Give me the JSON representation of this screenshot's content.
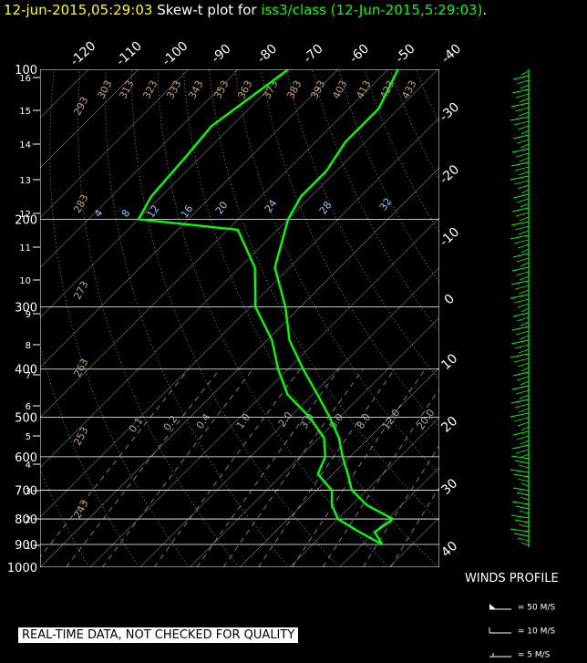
{
  "title": {
    "date": "12-jun-2015,05:29:03",
    "middle": "Skew-t plot for ",
    "source": "iss3/class (12-Jun-2015,5:29:03)",
    "end": "."
  },
  "notice": "REAL-TIME DATA, NOT CHECKED FOR QUALITY",
  "winds": {
    "title": "WINDS PROFILE",
    "legend": [
      "= 50 M/S",
      "= 10 M/S",
      "= 5 M/S"
    ]
  },
  "colors": {
    "profile": "#00ff00",
    "grid": "#ffffff",
    "dry_adiabat": "#c8a070",
    "mixing_ratio": "#88c8ff",
    "title_date": "#ffff00",
    "title_source": "#00ff00"
  },
  "chart_data": {
    "type": "skew-t",
    "pressure_levels_hPa": [
      100,
      200,
      300,
      400,
      500,
      600,
      700,
      800,
      900,
      1000
    ],
    "temperature_labels_top": [
      "-120",
      "-110",
      "-100",
      "-90",
      "-80",
      "-70",
      "-60",
      "-50",
      "-40"
    ],
    "temperature_labels_right": [
      "-30",
      "-20",
      "-10",
      "0",
      "10",
      "20",
      "30",
      "40"
    ],
    "height_km_labels": [
      "16",
      "15",
      "14",
      "13",
      "12",
      "11",
      "10",
      "9",
      "8",
      "7",
      "6",
      "5",
      "4",
      "3",
      "2",
      "1"
    ],
    "height_km_values": [
      16,
      15,
      14,
      13,
      12,
      11,
      10,
      9,
      8,
      7,
      6,
      5,
      4,
      3,
      2,
      1
    ],
    "dry_adiabat_labels": [
      "293",
      "303",
      "313",
      "323",
      "333",
      "343",
      "353",
      "363",
      "373",
      "383",
      "393",
      "403",
      "413",
      "423",
      "433",
      "283",
      "273",
      "263",
      "253",
      "243"
    ],
    "mixing_ratio_labels_upper": [
      "4",
      "8",
      "12",
      "16",
      "20",
      "24",
      "28",
      "32"
    ],
    "mixing_ratio_labels_lower": [
      "0.1",
      "0.2",
      "0.4",
      "1.0",
      "2.0",
      "3.0",
      "5.0",
      "8.0",
      "12.0",
      "20.0"
    ],
    "temperature_profile": [
      {
        "p": 900,
        "t": 24.0
      },
      {
        "p": 850,
        "t": 20.0
      },
      {
        "p": 800,
        "t": 21.0
      },
      {
        "p": 750,
        "t": 13.0
      },
      {
        "p": 700,
        "t": 7.0
      },
      {
        "p": 650,
        "t": 3.0
      },
      {
        "p": 600,
        "t": -1.5
      },
      {
        "p": 550,
        "t": -6.0
      },
      {
        "p": 500,
        "t": -12.0
      },
      {
        "p": 450,
        "t": -19.0
      },
      {
        "p": 400,
        "t": -27.0
      },
      {
        "p": 350,
        "t": -35.5
      },
      {
        "p": 300,
        "t": -43.0
      },
      {
        "p": 250,
        "t": -53.0
      },
      {
        "p": 200,
        "t": -60.0
      },
      {
        "p": 180,
        "t": -62.0
      },
      {
        "p": 160,
        "t": -62.0
      },
      {
        "p": 140,
        "t": -64.0
      },
      {
        "p": 120,
        "t": -64.0
      },
      {
        "p": 100,
        "t": -68.0
      }
    ],
    "dewpoint_profile": [
      {
        "p": 900,
        "t": 24.0
      },
      {
        "p": 850,
        "t": 17.0
      },
      {
        "p": 800,
        "t": 10.0
      },
      {
        "p": 750,
        "t": 6.0
      },
      {
        "p": 700,
        "t": 3.0
      },
      {
        "p": 650,
        "t": -3.0
      },
      {
        "p": 600,
        "t": -5.0
      },
      {
        "p": 550,
        "t": -9.0
      },
      {
        "p": 500,
        "t": -16.0
      },
      {
        "p": 450,
        "t": -25.0
      },
      {
        "p": 400,
        "t": -32.0
      },
      {
        "p": 350,
        "t": -39.0
      },
      {
        "p": 300,
        "t": -49.0
      },
      {
        "p": 250,
        "t": -57.0
      },
      {
        "p": 210,
        "t": -68.0
      },
      {
        "p": 200,
        "t": -90.0
      },
      {
        "p": 180,
        "t": -92.0
      },
      {
        "p": 150,
        "t": -93.0
      },
      {
        "p": 130,
        "t": -94.0
      },
      {
        "p": 100,
        "t": -90.0
      }
    ],
    "xlim_C": [
      -40,
      40
    ],
    "ylim_hPa": [
      1000,
      100
    ],
    "y_scale": "log",
    "grid": true
  }
}
